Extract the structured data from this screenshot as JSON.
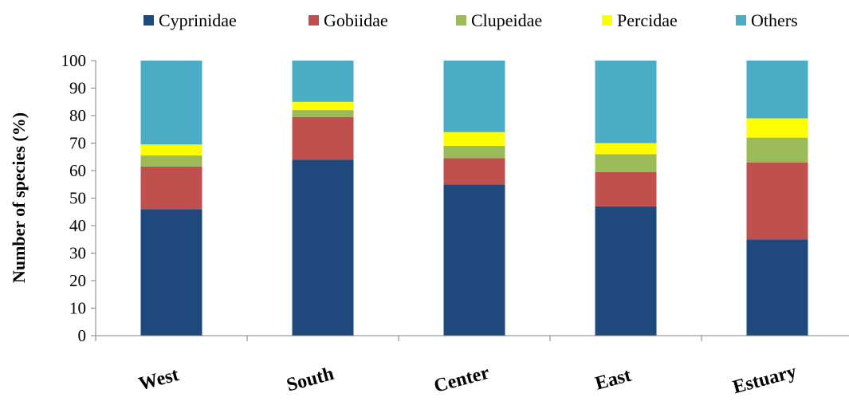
{
  "chart_data": {
    "type": "bar",
    "stacked": true,
    "categories": [
      "West",
      "South",
      "Center",
      "East",
      "Estuary"
    ],
    "series": [
      {
        "name": "Cyprinidae",
        "color": "#1F497D",
        "values": [
          46,
          64,
          55,
          47,
          35
        ]
      },
      {
        "name": "Gobiidae",
        "color": "#C0504D",
        "values": [
          15.5,
          15.5,
          9.5,
          12.5,
          28
        ]
      },
      {
        "name": "Clupeidae",
        "color": "#9BBB59",
        "values": [
          4,
          2.5,
          4.5,
          6.5,
          9
        ]
      },
      {
        "name": "Percidae",
        "color": "#FFFF00",
        "values": [
          4,
          3,
          5,
          4,
          7
        ]
      },
      {
        "name": "Others",
        "color": "#4BACC6",
        "values": [
          30.5,
          15,
          26,
          30,
          21
        ]
      }
    ],
    "title": "",
    "xlabel": "",
    "ylabel": "Number of species (%)",
    "ylim": [
      0,
      100
    ],
    "yticks": [
      "0",
      "10",
      "20",
      "30",
      "40",
      "50",
      "60",
      "70",
      "80",
      "90",
      "100"
    ],
    "grid": false,
    "legend_position": "top"
  }
}
